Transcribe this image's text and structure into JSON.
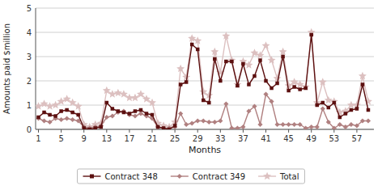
{
  "chart_data": {
    "type": "line",
    "title": "",
    "xlabel": "Months",
    "ylabel": "Amounts paid $million",
    "x": [
      1,
      2,
      3,
      4,
      5,
      6,
      7,
      8,
      9,
      10,
      11,
      12,
      13,
      14,
      15,
      16,
      17,
      18,
      19,
      20,
      21,
      22,
      23,
      24,
      25,
      26,
      27,
      28,
      29,
      30,
      31,
      32,
      33,
      34,
      35,
      36,
      37,
      38,
      39,
      40,
      41,
      42,
      43,
      44,
      45,
      46,
      47,
      48,
      49,
      50,
      51,
      52,
      53,
      54,
      55,
      56,
      57,
      58,
      59
    ],
    "xlim": [
      0.5,
      60
    ],
    "ylim": [
      0,
      5
    ],
    "xticks": [
      1,
      5,
      9,
      13,
      17,
      21,
      25,
      29,
      33,
      37,
      41,
      45,
      49,
      53,
      57
    ],
    "yticks": [
      0,
      1,
      2,
      3,
      4,
      5
    ],
    "grid": "y",
    "legend": "bottom",
    "series": [
      {
        "name": "Contract 348",
        "color": "#5C1010",
        "marker": "square",
        "values": [
          0.5,
          0.7,
          0.6,
          0.55,
          0.75,
          0.8,
          0.7,
          0.6,
          0.05,
          0.0,
          0.05,
          0.1,
          1.1,
          0.85,
          0.75,
          0.7,
          0.65,
          0.75,
          0.8,
          0.65,
          0.6,
          0.1,
          0.05,
          0.0,
          0.15,
          1.85,
          1.95,
          3.5,
          3.3,
          1.2,
          1.1,
          2.9,
          2.0,
          2.8,
          2.8,
          1.8,
          2.7,
          1.85,
          2.2,
          2.85,
          2.0,
          1.7,
          1.9,
          3.0,
          1.6,
          1.75,
          1.65,
          1.7,
          3.9,
          1.0,
          1.1,
          0.9,
          1.1,
          0.5,
          0.65,
          0.8,
          0.85,
          1.85,
          0.8
        ]
      },
      {
        "name": "Contract 349",
        "color": "#B08080",
        "marker": "diamond",
        "values": [
          0.45,
          0.35,
          0.3,
          0.45,
          0.4,
          0.45,
          0.4,
          0.35,
          0.1,
          0.05,
          0.1,
          0.15,
          0.5,
          0.55,
          0.7,
          0.75,
          0.6,
          0.55,
          0.65,
          0.55,
          0.45,
          0.1,
          0.05,
          0.05,
          0.1,
          0.65,
          0.2,
          0.25,
          0.35,
          0.35,
          0.3,
          0.3,
          0.35,
          1.05,
          0.05,
          0.05,
          0.1,
          0.75,
          0.95,
          0.2,
          1.45,
          1.15,
          0.2,
          0.2,
          0.2,
          0.2,
          0.2,
          0.05,
          0.1,
          0.1,
          0.85,
          0.3,
          0.05,
          0.2,
          0.1,
          0.2,
          0.15,
          0.35,
          0.35
        ]
      },
      {
        "name": "Total",
        "color": "#DCC0C0",
        "marker": "star",
        "values": [
          0.95,
          1.05,
          0.95,
          1.0,
          1.15,
          1.25,
          1.1,
          0.95,
          0.2,
          0.1,
          0.2,
          0.25,
          1.6,
          1.45,
          1.5,
          1.45,
          1.3,
          1.3,
          1.45,
          1.25,
          1.1,
          0.25,
          0.15,
          0.1,
          0.3,
          2.5,
          2.15,
          3.75,
          3.65,
          1.55,
          1.4,
          3.2,
          2.35,
          3.85,
          2.85,
          1.85,
          2.8,
          2.65,
          3.15,
          3.05,
          3.45,
          2.85,
          2.1,
          3.2,
          1.8,
          1.95,
          1.85,
          1.75,
          4.0,
          1.1,
          1.95,
          1.2,
          1.15,
          0.7,
          0.75,
          1.0,
          1.0,
          2.2,
          1.15
        ]
      }
    ]
  }
}
